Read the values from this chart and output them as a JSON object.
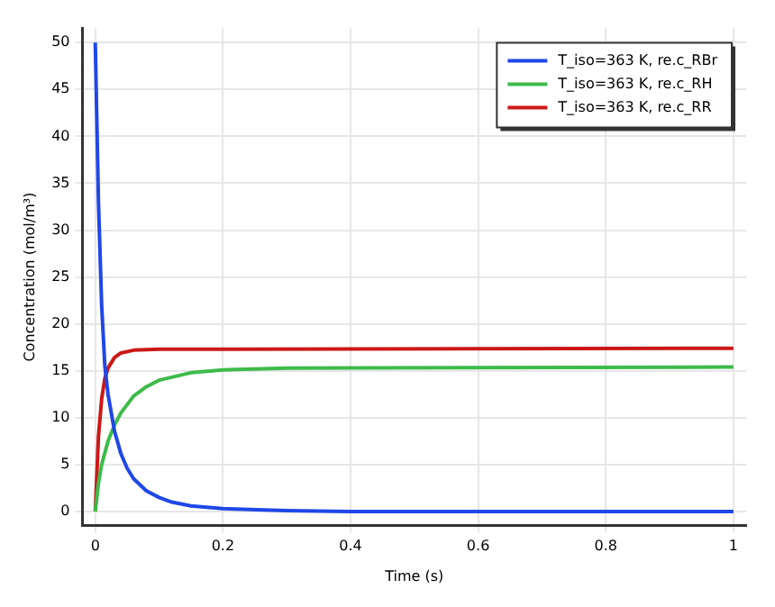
{
  "chart_data": {
    "type": "line",
    "xlabel": "Time (s)",
    "ylabel": "Concentration (mol/m³)",
    "xlim": [
      -0.02,
      1.02
    ],
    "ylim": [
      -1.5,
      51.5
    ],
    "xticks": [
      0,
      0.2,
      0.4,
      0.6,
      0.8,
      1
    ],
    "yticks": [
      0,
      5,
      10,
      15,
      20,
      25,
      30,
      35,
      40,
      45,
      50
    ],
    "grid": true,
    "legend": "top right",
    "marker": "none",
    "line_style": "solid",
    "series": [
      {
        "name": "T_iso=363 K, re.c_RBr",
        "color": "#1f47e8",
        "x": [
          0,
          0.005,
          0.01,
          0.015,
          0.02,
          0.03,
          0.04,
          0.05,
          0.06,
          0.08,
          0.1,
          0.12,
          0.15,
          0.2,
          0.3,
          0.4,
          1
        ],
        "values": [
          50,
          33,
          22,
          15.5,
          12.5,
          8.6,
          6.2,
          4.6,
          3.5,
          2.2,
          1.5,
          1,
          0.6,
          0.3,
          0.1,
          0,
          0
        ]
      },
      {
        "name": "T_iso=363 K, re.c_RH",
        "color": "#3dbb4a",
        "x": [
          0,
          0.005,
          0.01,
          0.02,
          0.03,
          0.04,
          0.06,
          0.08,
          0.1,
          0.15,
          0.2,
          0.3,
          1
        ],
        "values": [
          0,
          3,
          5,
          7.5,
          9.2,
          10.5,
          12.3,
          13.3,
          14,
          14.8,
          15.1,
          15.3,
          15.4
        ]
      },
      {
        "name": "T_iso=363 K, re.c_RR",
        "color": "#cc1818",
        "x": [
          0,
          0.005,
          0.01,
          0.015,
          0.02,
          0.03,
          0.04,
          0.06,
          0.1,
          1
        ],
        "values": [
          0,
          8,
          12,
          14.2,
          15.3,
          16.4,
          16.9,
          17.2,
          17.3,
          17.4
        ]
      }
    ]
  }
}
